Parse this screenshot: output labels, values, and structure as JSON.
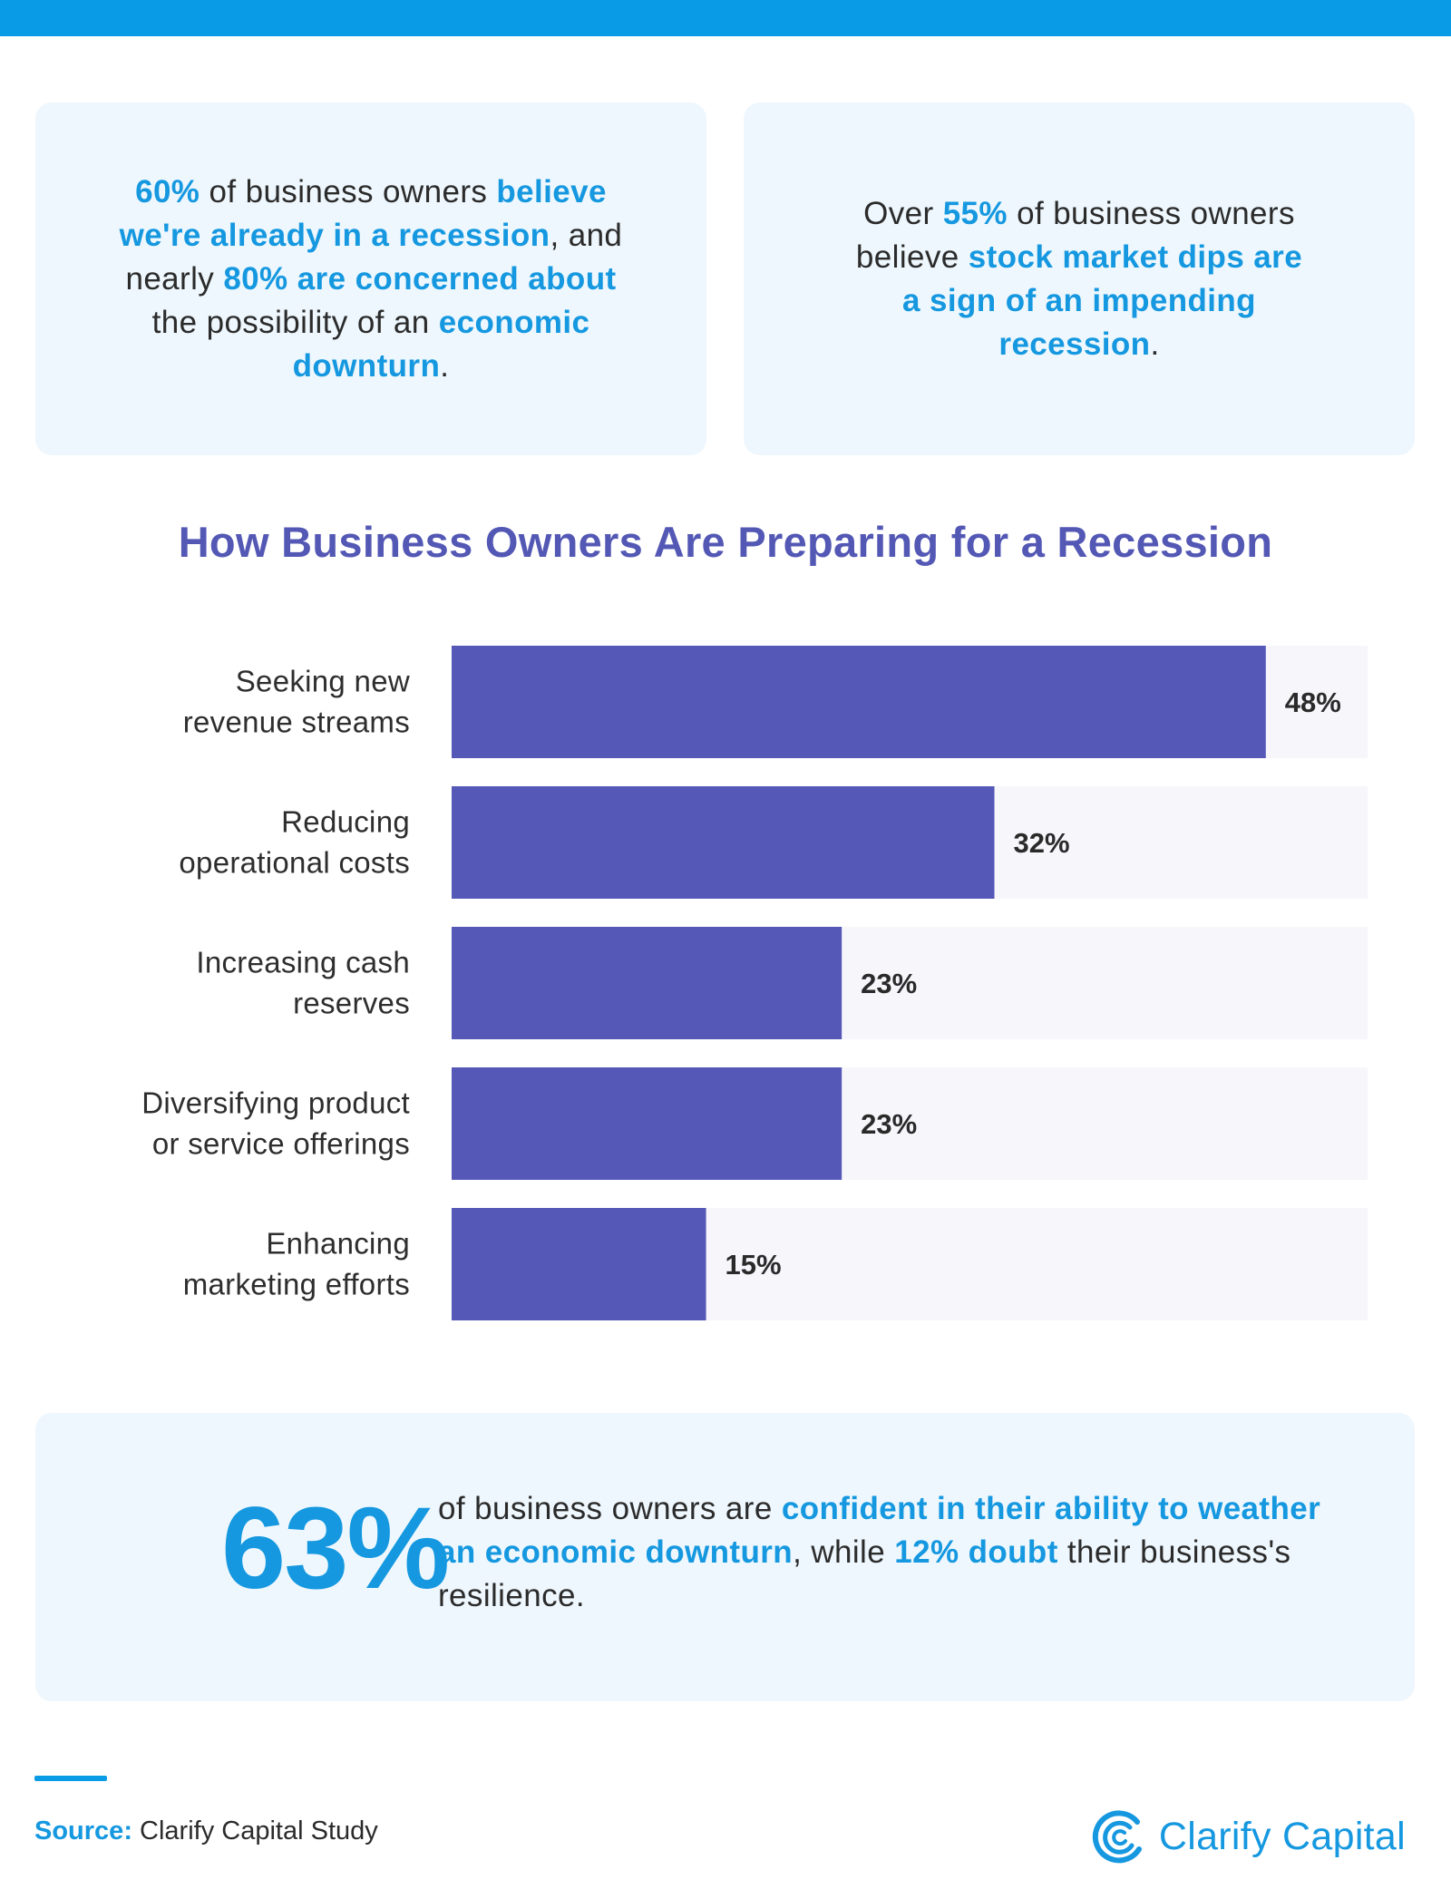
{
  "stat_cards": [
    {
      "parts": [
        {
          "text": "60%",
          "hl": true
        },
        {
          "text": " of business owners ",
          "hl": false
        },
        {
          "text": "believe we're already in a recession",
          "hl": true
        },
        {
          "text": ", and nearly ",
          "hl": false
        },
        {
          "text": "80% are concerned about",
          "hl": true
        },
        {
          "text": " the possibility of an ",
          "hl": false
        },
        {
          "text": "economic downturn",
          "hl": true
        },
        {
          "text": ".",
          "hl": false
        }
      ]
    },
    {
      "parts": [
        {
          "text": "Over ",
          "hl": false
        },
        {
          "text": "55%",
          "hl": true
        },
        {
          "text": " of business owners believe ",
          "hl": false
        },
        {
          "text": "stock market dips are a sign of an impending recession",
          "hl": true
        },
        {
          "text": ".",
          "hl": false
        }
      ]
    }
  ],
  "chart_data": {
    "type": "bar",
    "orientation": "horizontal",
    "title": "How Business Owners Are Preparing for a Recession",
    "categories": [
      [
        "Seeking new",
        "revenue streams"
      ],
      [
        "Reducing",
        "operational costs"
      ],
      [
        "Increasing cash",
        "reserves"
      ],
      [
        "Diversifying product",
        "or service offerings"
      ],
      [
        "Enhancing",
        "marketing efforts"
      ]
    ],
    "values": [
      48,
      32,
      23,
      23,
      15
    ],
    "value_labels": [
      "48%",
      "32%",
      "23%",
      "23%",
      "15%"
    ],
    "xlim": [
      0,
      54
    ],
    "bar_color": "#5558b6",
    "track_color": "#f6f6fb"
  },
  "bottom_stat": {
    "big": "63%",
    "parts": [
      {
        "text": "of business owners are ",
        "hl": false
      },
      {
        "text": "confident in their ability to weather an economic downturn",
        "hl": true
      },
      {
        "text": ", while ",
        "hl": false
      },
      {
        "text": "12% doubt",
        "hl": true
      },
      {
        "text": " their business's resilience.",
        "hl": false
      }
    ]
  },
  "source": {
    "label": "Source:",
    "text": " Clarify Capital Study"
  },
  "brand": {
    "name": "Clarify Capital",
    "icon": "clarify-logo-icon"
  },
  "colors": {
    "accent": "#1598e0",
    "bar": "#5558b6",
    "title": "#5458b5",
    "card_bg": "#eef7fd"
  }
}
